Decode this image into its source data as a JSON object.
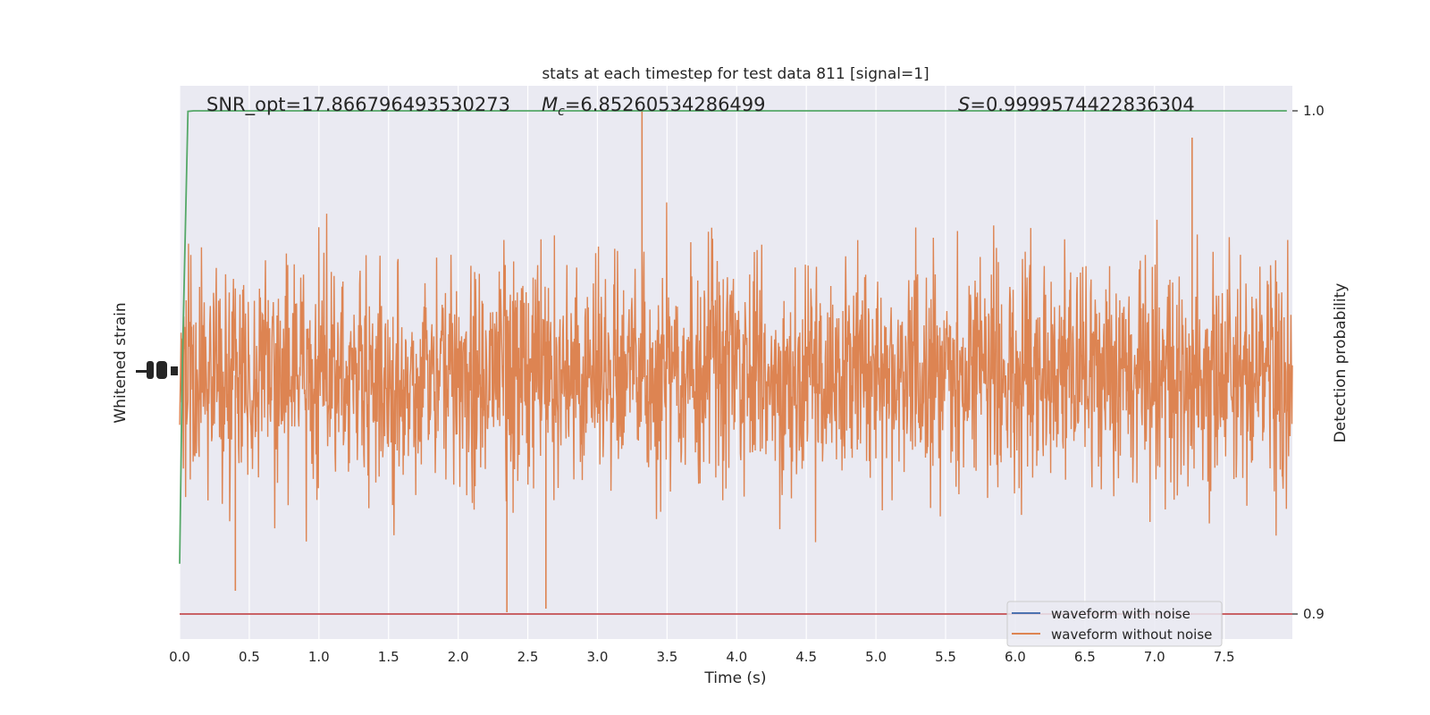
{
  "chart_data": {
    "type": "line",
    "title": "stats at each timestep for test data 811 [signal=1]",
    "xlabel": "Time (s)",
    "ylabel_left": "Whitened strain",
    "ylabel_right": "Detection probability",
    "xlim": [
      0.0,
      7.99
    ],
    "x_ticks": [
      0.0,
      0.5,
      1.0,
      1.5,
      2.0,
      2.5,
      3.0,
      3.5,
      4.0,
      4.5,
      5.0,
      5.5,
      6.0,
      6.5,
      7.0,
      7.5
    ],
    "x_tick_labels": [
      "0.0",
      "0.5",
      "1.0",
      "1.5",
      "2.0",
      "2.5",
      "3.0",
      "3.5",
      "4.0",
      "4.5",
      "5.0",
      "5.5",
      "6.0",
      "6.5",
      "7.0",
      "7.5"
    ],
    "right_ylim": [
      0.895,
      1.0
    ],
    "right_ticks": [
      1.0,
      0.9
    ],
    "right_tick_labels": [
      "1.0",
      "0.9"
    ],
    "threshold": 0.9,
    "annotations": {
      "snr": "SNR_opt=17.866796493530273",
      "mc_symbol": "M",
      "mc_sub": "c",
      "mc_value": "=6.85260534286499",
      "s_symbol": "S",
      "s_value": "=0.9999574422836304"
    },
    "series": [
      {
        "name": "waveform with noise",
        "color": "#4c72b0"
      },
      {
        "name": "waveform without noise",
        "color": "#dd8452"
      },
      {
        "color": "#55a868",
        "points": [
          [
            0.0,
            0.91
          ],
          [
            0.02,
            0.95
          ],
          [
            0.06,
            0.9999
          ],
          [
            0.1,
            1.0
          ],
          [
            7.95,
            1.0
          ]
        ]
      },
      {
        "color": "#c44e52",
        "value": 0.9
      }
    ],
    "legend_position": "lower-right",
    "grid": true
  }
}
